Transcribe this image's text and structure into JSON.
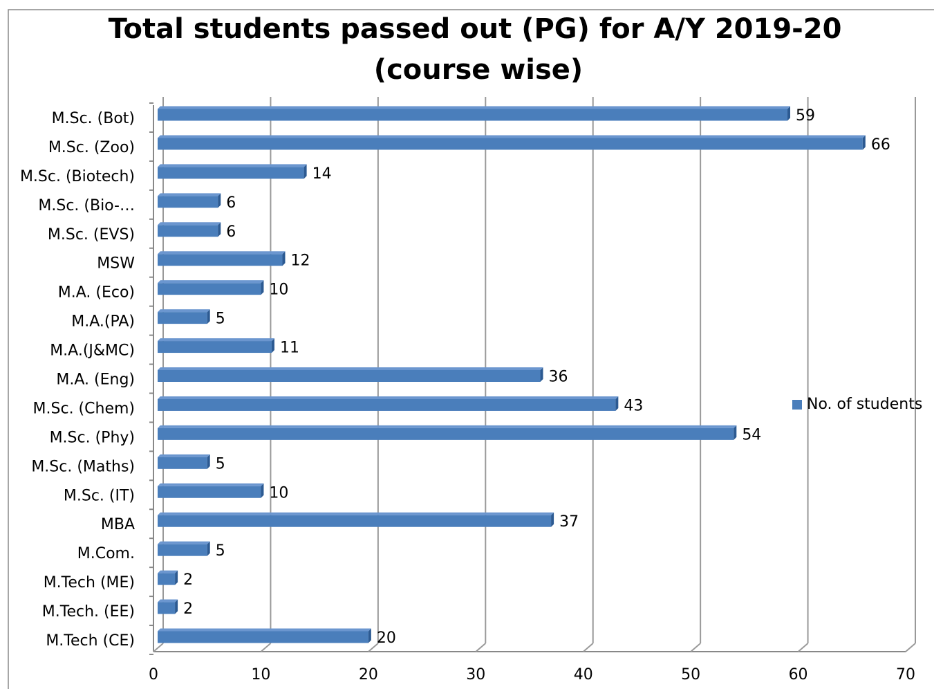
{
  "chart_data": {
    "type": "hbar",
    "title": [
      "Total students passed out (PG) for A/Y 2019-20",
      "(course wise)"
    ],
    "categories": [
      "M.Sc. (Bot)",
      "M.Sc. (Zoo)",
      "M.Sc. (Biotech)",
      "M.Sc. (Bio-…",
      "M.Sc. (EVS)",
      "MSW",
      "M.A. (Eco)",
      "M.A.(PA)",
      "M.A.(J&MC)",
      "M.A. (Eng)",
      "M.Sc. (Chem)",
      "M.Sc. (Phy)",
      "M.Sc. (Maths)",
      "M.Sc. (IT)",
      "MBA",
      "M.Com.",
      "M.Tech (ME)",
      "M.Tech. (EE)",
      "M.Tech (CE)"
    ],
    "series": [
      {
        "name": "No. of students",
        "color": "#4a7ebb",
        "values": [
          59,
          66,
          14,
          6,
          6,
          12,
          10,
          5,
          11,
          36,
          43,
          54,
          5,
          10,
          37,
          5,
          2,
          2,
          20
        ]
      }
    ],
    "xlim": [
      0,
      70
    ],
    "xticks": [
      0,
      10,
      20,
      30,
      40,
      50,
      60,
      70
    ],
    "grid": true,
    "legend": "right"
  }
}
